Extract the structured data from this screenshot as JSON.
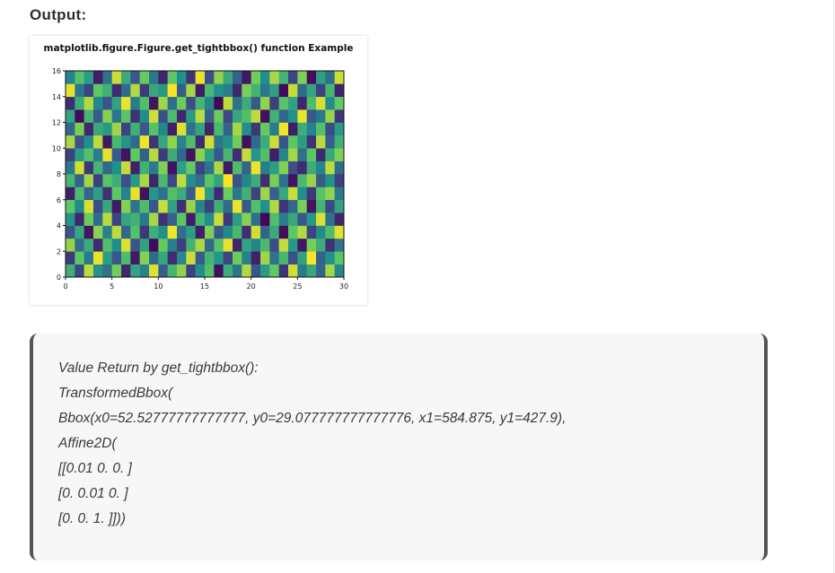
{
  "heading": "Output:",
  "chart_data": {
    "type": "heatmap",
    "title": "matplotlib.figure.Figure.get_tightbbox() function Example",
    "xlabel": "",
    "ylabel": "",
    "xlim": [
      0,
      30
    ],
    "ylim": [
      0,
      16
    ],
    "x_ticks": [
      "0",
      "5",
      "10",
      "15",
      "20",
      "25",
      "30"
    ],
    "y_ticks": [
      "0",
      "2",
      "4",
      "6",
      "8",
      "10",
      "12",
      "14",
      "16"
    ],
    "colormap": "viridis",
    "rows": 16,
    "cols": 30,
    "values": [
      [
        0.63,
        0.22,
        0.9,
        0.51,
        0.37,
        0.78,
        0.12,
        0.58,
        0.44,
        0.95,
        0.3,
        0.66,
        0.83,
        0.2,
        0.49,
        0.71,
        0.05,
        0.62,
        0.39,
        0.88,
        0.27,
        0.54,
        0.75,
        0.16,
        0.93,
        0.41,
        0.6,
        0.33,
        0.86,
        0.47
      ],
      [
        0.18,
        0.74,
        0.4,
        0.97,
        0.55,
        0.26,
        0.69,
        0.08,
        0.81,
        0.35,
        0.59,
        0.14,
        0.46,
        0.92,
        0.29,
        0.65,
        0.52,
        0.21,
        0.77,
        0.43,
        0.1,
        0.85,
        0.38,
        0.67,
        0.24,
        0.57,
        0.99,
        0.31,
        0.5,
        0.73
      ],
      [
        0.84,
        0.36,
        0.61,
        0.13,
        0.7,
        0.48,
        0.94,
        0.25,
        0.57,
        0.03,
        0.76,
        0.42,
        0.19,
        0.64,
        0.87,
        0.34,
        0.72,
        0.96,
        0.11,
        0.58,
        0.45,
        0.68,
        0.23,
        0.91,
        0.53,
        0.07,
        0.79,
        0.62,
        0.15,
        0.39
      ],
      [
        0.27,
        0.59,
        0.06,
        0.82,
        0.44,
        0.9,
        0.33,
        0.71,
        0.17,
        0.63,
        0.5,
        0.98,
        0.37,
        0.55,
        0.09,
        0.8,
        0.28,
        0.46,
        0.67,
        0.14,
        0.93,
        0.32,
        0.61,
        0.04,
        0.74,
        0.88,
        0.2,
        0.47,
        0.69,
        0.95
      ],
      [
        0.52,
        0.12,
        0.77,
        0.35,
        0.89,
        0.21,
        0.58,
        0.64,
        0.4,
        0.86,
        0.15,
        0.31,
        0.73,
        0.08,
        0.66,
        0.49,
        0.92,
        0.18,
        0.55,
        0.81,
        0.36,
        0.02,
        0.7,
        0.43,
        0.6,
        0.27,
        0.53,
        0.94,
        0.38,
        0.11
      ],
      [
        0.75,
        0.47,
        0.94,
        0.23,
        0.6,
        0.08,
        0.81,
        0.39,
        0.69,
        0.26,
        0.92,
        0.57,
        0.14,
        0.84,
        0.45,
        0.19,
        0.63,
        0.35,
        0.97,
        0.28,
        0.71,
        0.5,
        0.88,
        0.16,
        0.34,
        0.79,
        0.06,
        0.65,
        0.22,
        0.57
      ],
      [
        0.09,
        0.68,
        0.32,
        0.56,
        0.15,
        0.74,
        0.44,
        0.96,
        0.05,
        0.52,
        0.37,
        0.7,
        0.61,
        0.29,
        0.98,
        0.55,
        0.13,
        0.77,
        0.4,
        0.64,
        0.2,
        0.85,
        0.3,
        0.59,
        0.92,
        0.48,
        0.17,
        0.72,
        0.83,
        0.41
      ],
      [
        0.66,
        0.3,
        0.85,
        0.19,
        0.72,
        0.62,
        0.24,
        0.53,
        0.87,
        0.11,
        0.67,
        0.22,
        0.9,
        0.48,
        0.36,
        0.73,
        0.58,
        0.99,
        0.25,
        0.45,
        0.62,
        0.14,
        0.79,
        0.37,
        0.06,
        0.68,
        0.84,
        0.28,
        0.51,
        0.19
      ],
      [
        0.41,
        0.93,
        0.17,
        0.65,
        0.33,
        0.5,
        0.91,
        0.1,
        0.64,
        0.42,
        0.8,
        0.05,
        0.56,
        0.76,
        0.21,
        0.39,
        0.87,
        0.07,
        0.69,
        0.32,
        0.97,
        0.43,
        0.55,
        0.81,
        0.24,
        0.13,
        0.62,
        0.45,
        0.9,
        0.35
      ],
      [
        0.2,
        0.54,
        0.71,
        0.42,
        0.96,
        0.29,
        0.06,
        0.75,
        0.31,
        0.89,
        0.18,
        0.61,
        0.34,
        0.05,
        0.82,
        0.57,
        0.27,
        0.66,
        0.14,
        0.91,
        0.52,
        0.7,
        0.09,
        0.46,
        0.86,
        0.37,
        0.73,
        0.12,
        0.6,
        0.8
      ],
      [
        0.87,
        0.25,
        0.48,
        0.9,
        0.07,
        0.67,
        0.52,
        0.34,
        0.98,
        0.16,
        0.59,
        0.83,
        0.44,
        0.7,
        0.13,
        0.93,
        0.4,
        0.51,
        0.78,
        0.04,
        0.35,
        0.61,
        0.92,
        0.26,
        0.74,
        0.55,
        0.15,
        0.89,
        0.3,
        0.64
      ],
      [
        0.33,
        0.79,
        0.12,
        0.6,
        0.54,
        0.85,
        0.2,
        0.63,
        0.27,
        0.72,
        0.46,
        0.09,
        0.95,
        0.38,
        0.58,
        0.11,
        0.68,
        0.32,
        0.86,
        0.49,
        0.17,
        0.76,
        0.41,
        0.98,
        0.08,
        0.62,
        0.44,
        0.71,
        0.23,
        0.53
      ],
      [
        0.58,
        0.03,
        0.66,
        0.28,
        0.81,
        0.39,
        0.73,
        0.15,
        0.49,
        0.93,
        0.24,
        0.68,
        0.12,
        0.54,
        0.89,
        0.3,
        0.77,
        0.22,
        0.59,
        0.7,
        0.9,
        0.05,
        0.64,
        0.33,
        0.5,
        0.97,
        0.27,
        0.4,
        0.84,
        0.16
      ],
      [
        0.14,
        0.62,
        0.88,
        0.47,
        0.25,
        0.57,
        0.97,
        0.42,
        0.7,
        0.06,
        0.85,
        0.36,
        0.77,
        0.23,
        0.65,
        0.46,
        0.02,
        0.9,
        0.37,
        0.61,
        0.28,
        0.83,
        0.19,
        0.72,
        0.57,
        0.11,
        0.69,
        0.94,
        0.48,
        0.75
      ],
      [
        0.96,
        0.4,
        0.21,
        0.74,
        0.63,
        0.13,
        0.35,
        0.88,
        0.18,
        0.6,
        0.53,
        0.99,
        0.29,
        0.86,
        0.08,
        0.67,
        0.5,
        0.43,
        0.12,
        0.8,
        0.65,
        0.39,
        0.56,
        0.03,
        0.91,
        0.34,
        0.58,
        0.2,
        0.66,
        0.1
      ],
      [
        0.45,
        0.71,
        0.55,
        0.09,
        0.38,
        0.92,
        0.61,
        0.27,
        0.76,
        0.4,
        0.11,
        0.74,
        0.5,
        0.16,
        0.97,
        0.24,
        0.83,
        0.6,
        0.31,
        0.07,
        0.78,
        0.48,
        0.87,
        0.65,
        0.21,
        0.8,
        0.04,
        0.56,
        0.36,
        0.92
      ]
    ]
  },
  "code_lines": [
    "Value Return by get_tightbbox():",
    "TransformedBbox(",
    "Bbox(x0=52.52777777777777, y0=29.077777777777776, x1=584.875, y1=427.9),",
    "Affine2D(",
    "[[0.01 0. 0. ]",
    "[0. 0.01 0. ]",
    "[0. 0. 1. ]]))"
  ]
}
